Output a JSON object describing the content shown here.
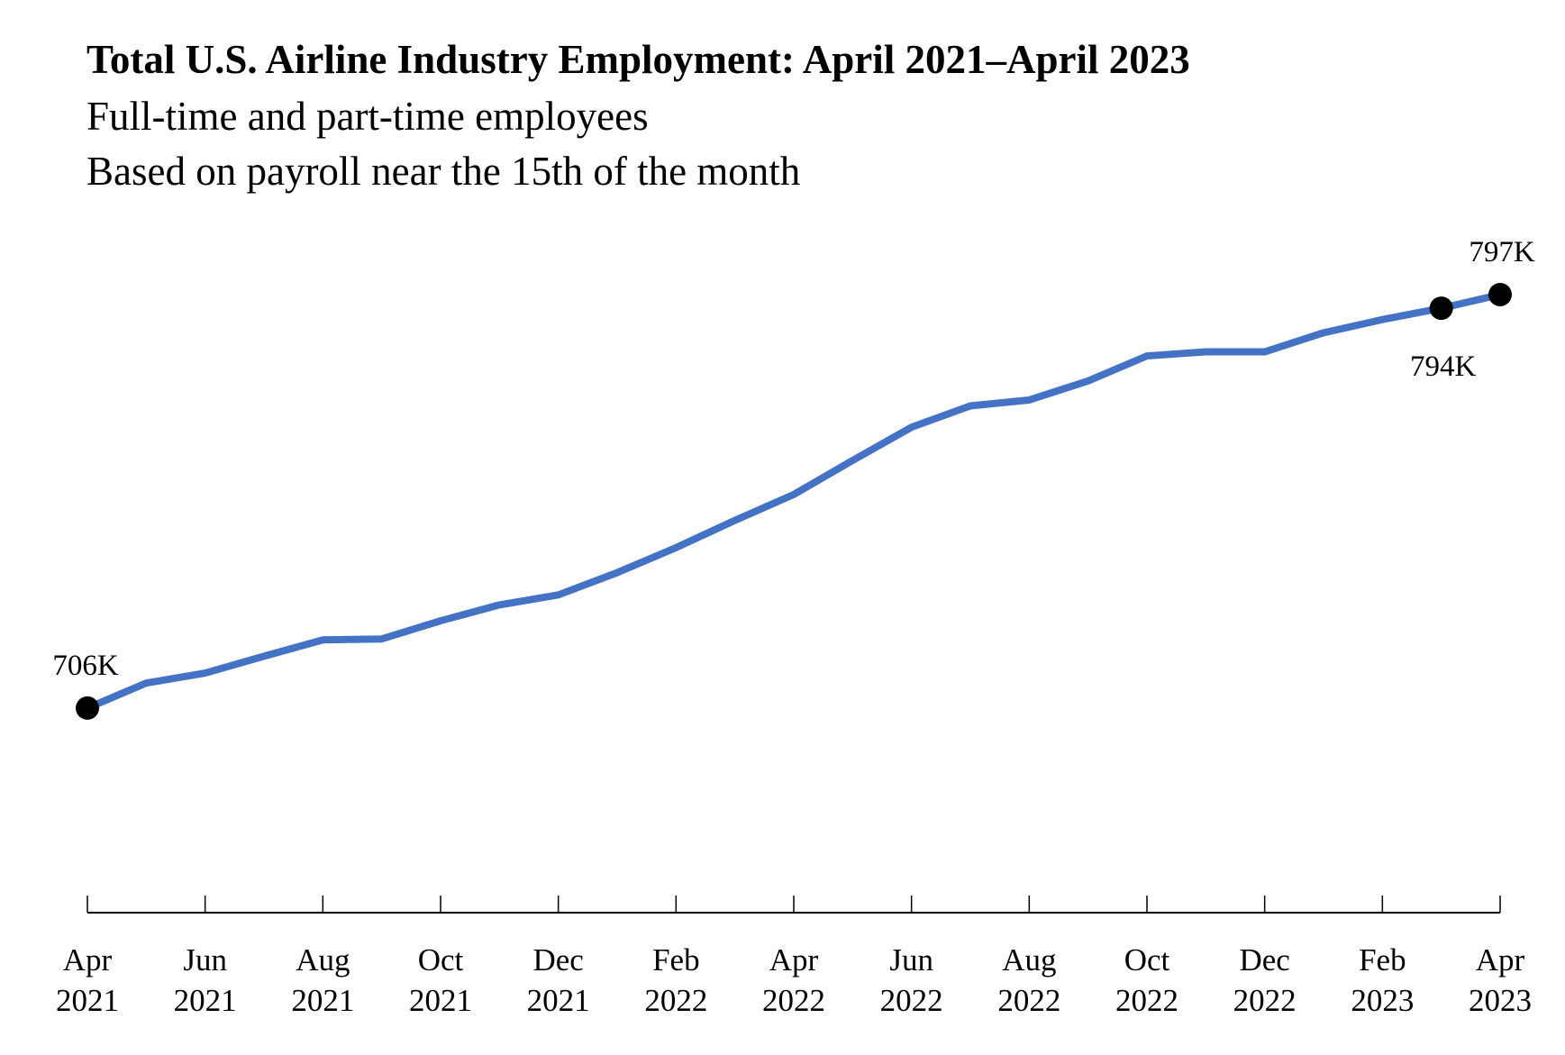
{
  "chart_data": {
    "type": "line",
    "title": "Total U.S. Airline Industry Employment: April 2021–April 2023",
    "subtitle": [
      "Full-time and part-time employees",
      "Based on payroll near the 15th of the month"
    ],
    "xlabel": "",
    "ylabel": "",
    "unit": "thousands of employees",
    "grid": false,
    "ylim": [
      680,
      820
    ],
    "x": [
      "Apr 2021",
      "May 2021",
      "Jun 2021",
      "Jul 2021",
      "Aug 2021",
      "Sep 2021",
      "Oct 2021",
      "Nov 2021",
      "Dec 2021",
      "Jan 2022",
      "Feb 2022",
      "Mar 2022",
      "Apr 2022",
      "May 2022",
      "Jun 2022",
      "Jul 2022",
      "Aug 2022",
      "Sep 2022",
      "Oct 2022",
      "Nov 2022",
      "Dec 2022",
      "Jan 2023",
      "Feb 2023",
      "Mar 2023",
      "Apr 2023"
    ],
    "values": [
      706,
      711.5,
      713.7,
      717.4,
      721.0,
      721.2,
      725.2,
      728.7,
      730.9,
      735.8,
      741.3,
      747.3,
      753.0,
      760.5,
      767.8,
      772.5,
      773.8,
      778.0,
      783.5,
      784.4,
      784.4,
      788.6,
      791.5,
      794,
      797
    ],
    "line_color": "#4472C4",
    "x_ticks": [
      {
        "month": "Apr",
        "year": "2021"
      },
      {
        "month": "Jun",
        "year": "2021"
      },
      {
        "month": "Aug",
        "year": "2021"
      },
      {
        "month": "Oct",
        "year": "2021"
      },
      {
        "month": "Dec",
        "year": "2021"
      },
      {
        "month": "Feb",
        "year": "2022"
      },
      {
        "month": "Apr",
        "year": "2022"
      },
      {
        "month": "Jun",
        "year": "2022"
      },
      {
        "month": "Aug",
        "year": "2022"
      },
      {
        "month": "Oct",
        "year": "2022"
      },
      {
        "month": "Dec",
        "year": "2022"
      },
      {
        "month": "Feb",
        "year": "2023"
      },
      {
        "month": "Apr",
        "year": "2023"
      }
    ],
    "annotations": [
      {
        "index": 0,
        "label": "706K",
        "position": "above"
      },
      {
        "index": 23,
        "label": "794K",
        "position": "below"
      },
      {
        "index": 24,
        "label": "797K",
        "position": "above"
      }
    ]
  }
}
